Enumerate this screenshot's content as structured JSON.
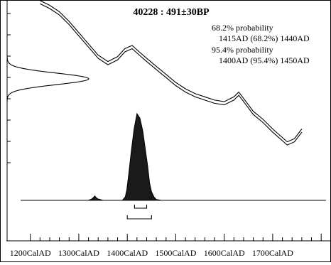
{
  "chart_data": {
    "type": "line",
    "title": "40228 : 491±30BP",
    "annotations": [
      "68.2% probability",
      "1415AD (68.2%) 1440AD",
      "95.4% probability",
      "1400AD (95.4%) 1450AD"
    ],
    "x_tick_labels": [
      "1200CalAD",
      "1300CalAD",
      "1400CalAD",
      "1500CalAD",
      "1600CalAD",
      "1700CalAD"
    ],
    "xlim": [
      1180,
      1810
    ],
    "calibration_curve": {
      "x": [
        1220,
        1240,
        1260,
        1280,
        1300,
        1320,
        1340,
        1360,
        1380,
        1395,
        1410,
        1425,
        1440,
        1460,
        1480,
        1500,
        1520,
        1540,
        1560,
        1580,
        1600,
        1620,
        1630,
        1640,
        1660,
        1680,
        1700,
        1715,
        1730,
        1745,
        1760
      ],
      "y": [
        0.0,
        0.03,
        0.07,
        0.13,
        0.2,
        0.27,
        0.34,
        0.38,
        0.35,
        0.3,
        0.28,
        0.32,
        0.36,
        0.41,
        0.46,
        0.51,
        0.55,
        0.58,
        0.6,
        0.62,
        0.63,
        0.6,
        0.57,
        0.61,
        0.69,
        0.74,
        0.8,
        0.84,
        0.88,
        0.86,
        0.8
      ],
      "band_width": 0.02
    },
    "radiocarbon_distribution": {
      "mean_BP": 491,
      "sigma_BP": 30
    },
    "calibrated_distribution": {
      "x": [
        1180,
        1320,
        1328,
        1333,
        1338,
        1350,
        1390,
        1396,
        1399,
        1403,
        1408,
        1414,
        1420,
        1426,
        1432,
        1437,
        1442,
        1446,
        1450,
        1455,
        1460,
        1470,
        1810
      ],
      "density": [
        0,
        0,
        0.02,
        0.05,
        0.02,
        0,
        0,
        0.04,
        0.12,
        0.3,
        0.55,
        0.82,
        1.0,
        0.95,
        0.8,
        0.6,
        0.4,
        0.2,
        0.1,
        0.04,
        0.01,
        0,
        0
      ]
    },
    "ranges": [
      {
        "level": "68.2%",
        "from": 1415,
        "to": 1440
      },
      {
        "level": "95.4%",
        "from": 1400,
        "to": 1450
      }
    ]
  }
}
